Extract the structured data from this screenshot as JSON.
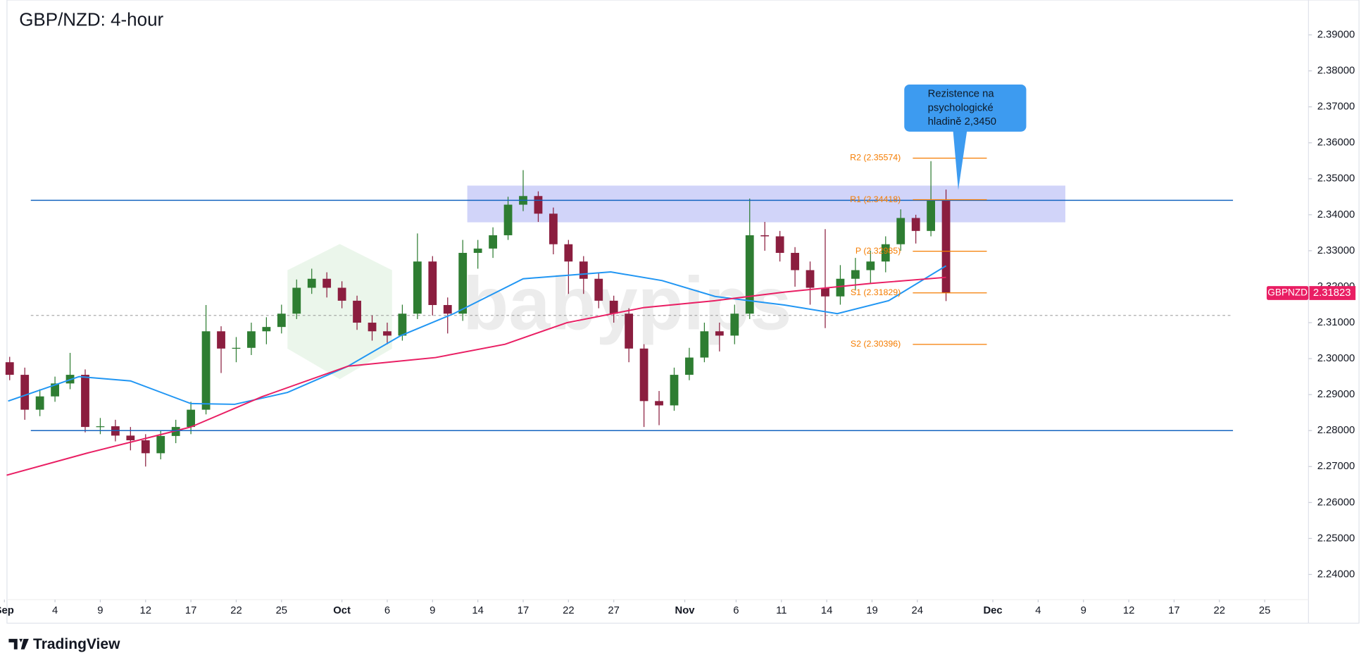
{
  "chart_data": {
    "type": "candlestick",
    "title": "GBP/NZD: 4-hour",
    "symbol": "GBPNZD",
    "last_price": 2.31823,
    "watermark": "babypips",
    "footer": "TradingView",
    "x": [
      -1,
      0,
      1,
      2,
      3,
      4,
      5,
      6,
      7,
      8,
      9,
      10,
      11,
      12,
      13,
      14,
      15,
      16,
      17,
      18,
      19,
      20,
      21,
      22,
      23,
      24,
      25,
      26,
      27,
      28,
      29,
      30,
      31,
      32,
      33,
      34,
      35,
      36,
      37,
      38,
      39,
      40,
      41,
      42,
      43,
      44,
      45,
      46,
      47,
      48,
      49,
      50,
      51,
      52,
      53,
      54,
      55,
      56,
      57,
      58,
      59,
      60,
      61
    ],
    "open": [
      2.299,
      2.2955,
      2.2858,
      2.2895,
      2.2931,
      2.2955,
      2.281,
      2.2812,
      2.2786,
      2.2773,
      2.2737,
      2.2785,
      2.281,
      2.2858,
      2.3076,
      2.3028,
      2.303,
      2.3076,
      2.3088,
      2.3125,
      2.3197,
      2.3222,
      2.3197,
      2.3161,
      2.31,
      2.3076,
      2.3064,
      2.3125,
      2.327,
      2.3149,
      2.3125,
      2.3294,
      2.3306,
      2.3343,
      2.3428,
      2.3452,
      2.3403,
      2.3318,
      2.327,
      2.3222,
      2.3161,
      2.3125,
      2.3028,
      2.2882,
      2.287,
      2.2955,
      2.3003,
      2.3076,
      2.3064,
      2.3125,
      2.3343,
      2.334,
      2.3294,
      2.3246,
      2.3197,
      2.3173,
      2.3222,
      2.3246,
      2.327,
      2.3318,
      2.3391,
      2.3355,
      2.344
    ],
    "high": [
      2.3005,
      2.2975,
      2.2915,
      2.295,
      2.3016,
      2.297,
      2.2835,
      2.283,
      2.281,
      2.279,
      2.28,
      2.283,
      2.288,
      2.3149,
      2.309,
      2.306,
      2.31,
      2.3115,
      2.315,
      2.322,
      2.325,
      2.324,
      2.3215,
      2.3175,
      2.312,
      2.31,
      2.315,
      2.3348,
      2.3285,
      2.317,
      2.333,
      2.333,
      2.3365,
      2.345,
      2.3524,
      2.3465,
      2.342,
      2.333,
      2.3285,
      2.324,
      2.3175,
      2.314,
      2.304,
      2.291,
      2.2975,
      2.303,
      2.31,
      2.31,
      2.315,
      2.3445,
      2.338,
      2.3355,
      2.331,
      2.327,
      2.336,
      2.326,
      2.328,
      2.33,
      2.334,
      2.3415,
      2.34,
      2.3549,
      2.347
    ],
    "low": [
      2.294,
      2.283,
      2.284,
      2.288,
      2.2915,
      2.2795,
      2.279,
      2.277,
      2.2745,
      2.27,
      2.272,
      2.2765,
      2.279,
      2.2845,
      2.296,
      2.299,
      2.301,
      2.304,
      2.307,
      2.311,
      2.318,
      2.317,
      2.314,
      2.308,
      2.305,
      2.304,
      2.305,
      2.311,
      2.312,
      2.307,
      2.3105,
      2.325,
      2.328,
      2.333,
      2.341,
      2.338,
      2.329,
      2.318,
      2.318,
      2.314,
      2.31,
      2.299,
      2.281,
      2.2815,
      2.2855,
      2.294,
      2.299,
      2.302,
      2.304,
      2.311,
      2.33,
      2.327,
      2.32,
      2.315,
      2.3085,
      2.315,
      2.319,
      2.321,
      2.324,
      2.33,
      2.332,
      2.334,
      2.316
    ],
    "close": [
      2.2955,
      2.2858,
      2.2895,
      2.2931,
      2.2955,
      2.281,
      2.2812,
      2.2786,
      2.2773,
      2.2737,
      2.2785,
      2.281,
      2.2858,
      2.3076,
      2.3028,
      2.303,
      2.3076,
      2.3088,
      2.3125,
      2.3197,
      2.3222,
      2.3197,
      2.3161,
      2.31,
      2.3076,
      2.3064,
      2.3125,
      2.327,
      2.3149,
      2.3125,
      2.3294,
      2.3306,
      2.3343,
      2.3428,
      2.3452,
      2.3403,
      2.3318,
      2.327,
      2.3222,
      2.3161,
      2.3125,
      2.3028,
      2.2882,
      2.287,
      2.2955,
      2.3003,
      2.3076,
      2.3064,
      2.3125,
      2.3343,
      2.334,
      2.3294,
      2.3246,
      2.3197,
      2.3173,
      2.3222,
      2.3246,
      2.327,
      2.3318,
      2.3391,
      2.3355,
      2.344,
      2.31823
    ],
    "up_color": "#2e7d32",
    "down_color": "#8b1e3f",
    "moving_averages": [
      {
        "color": "#2196f3",
        "x": [
          -1.1,
          3.6,
          7,
          11,
          13.9,
          17.4,
          21.4,
          24.9,
          28.4,
          33,
          38.8,
          42.2,
          45.7,
          50.3,
          53.8,
          57.2,
          61
        ],
        "values": [
          2.2882,
          2.295,
          2.2938,
          2.2875,
          2.2873,
          2.2906,
          2.2979,
          2.3064,
          2.3125,
          2.3222,
          2.3241,
          2.3217,
          2.3173,
          2.3149,
          2.3125,
          2.3161,
          2.3258
        ]
      },
      {
        "color": "#e91e63",
        "x": [
          -1.2,
          4.1,
          11,
          15.7,
          21.4,
          27.2,
          31.8,
          35.9,
          41,
          45.7,
          50.3,
          56,
          61
        ],
        "values": [
          2.2676,
          2.2737,
          2.281,
          2.2894,
          2.2979,
          2.3003,
          2.304,
          2.31,
          2.3142,
          2.3161,
          2.3185,
          2.3209,
          2.3226
        ]
      }
    ],
    "levels": [
      2.344,
      2.28
    ],
    "level_color": "#1565c0",
    "dashed_level": 2.312,
    "zone": [
      2.3379,
      2.3481
    ],
    "zone_color": "#b3b8f5",
    "pivots": [
      {
        "value": 2.35574,
        "label": "R2 (2.35574)"
      },
      {
        "value": 2.34418,
        "label": "R1 (2.34418)"
      },
      {
        "value": 2.32985,
        "label": "P (2.32985)"
      },
      {
        "value": 2.31829,
        "label": "S1 (2.31829)"
      },
      {
        "value": 2.30396,
        "label": "S2 (2.30396)"
      }
    ],
    "pivot_color": "#f57c00",
    "callout": [
      "Rezistence na",
      "psychologické",
      "hladině 2,3450"
    ],
    "callout_color": "#3d9bf0",
    "xlim": [
      -1.64,
      85.0
    ],
    "ylim": [
      2.233,
      2.3997
    ],
    "xticks": [
      {
        "value": -1.35,
        "label": "Sep"
      },
      {
        "value": 2,
        "label": "4"
      },
      {
        "value": 5,
        "label": "9"
      },
      {
        "value": 8,
        "label": "12"
      },
      {
        "value": 11,
        "label": "17"
      },
      {
        "value": 14,
        "label": "22"
      },
      {
        "value": 17,
        "label": "25"
      },
      {
        "value": 21,
        "label": "Oct"
      },
      {
        "value": 24,
        "label": "6"
      },
      {
        "value": 27,
        "label": "9"
      },
      {
        "value": 30,
        "label": "14"
      },
      {
        "value": 33,
        "label": "17"
      },
      {
        "value": 36,
        "label": "22"
      },
      {
        "value": 39,
        "label": "27"
      },
      {
        "value": 43.7,
        "label": "Nov"
      },
      {
        "value": 47.1,
        "label": "6"
      },
      {
        "value": 50.1,
        "label": "11"
      },
      {
        "value": 53.1,
        "label": "14"
      },
      {
        "value": 56.1,
        "label": "19"
      },
      {
        "value": 59.1,
        "label": "24"
      },
      {
        "value": 64.1,
        "label": "Dec"
      },
      {
        "value": 67.1,
        "label": "4"
      },
      {
        "value": 70.1,
        "label": "9"
      },
      {
        "value": 73.1,
        "label": "12"
      },
      {
        "value": 76.1,
        "label": "17"
      },
      {
        "value": 79.1,
        "label": "22"
      },
      {
        "value": 82.1,
        "label": "25"
      }
    ],
    "yticks": [
      {
        "value": 2.24,
        "label": "2.24000"
      },
      {
        "value": 2.25,
        "label": "2.25000"
      },
      {
        "value": 2.26,
        "label": "2.26000"
      },
      {
        "value": 2.27,
        "label": "2.27000"
      },
      {
        "value": 2.28,
        "label": "2.28000"
      },
      {
        "value": 2.29,
        "label": "2.29000"
      },
      {
        "value": 2.3,
        "label": "2.30000"
      },
      {
        "value": 2.31,
        "label": "2.31000"
      },
      {
        "value": 2.32,
        "label": "2.32000"
      },
      {
        "value": 2.33,
        "label": "2.33000"
      },
      {
        "value": 2.34,
        "label": "2.34000"
      },
      {
        "value": 2.35,
        "label": "2.35000"
      },
      {
        "value": 2.36,
        "label": "2.36000"
      },
      {
        "value": 2.37,
        "label": "2.37000"
      },
      {
        "value": 2.38,
        "label": "2.38000"
      },
      {
        "value": 2.39,
        "label": "2.39000"
      }
    ]
  }
}
